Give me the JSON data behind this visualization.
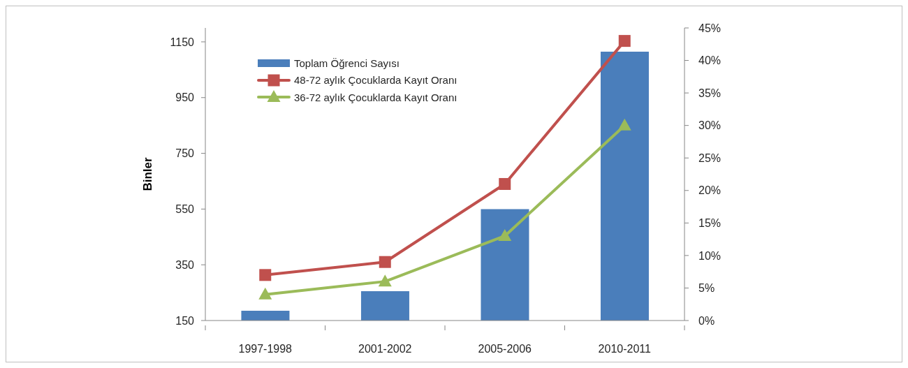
{
  "chart_data": {
    "type": "bar",
    "categories": [
      "1997-1998",
      "2001-2002",
      "2005-2006",
      "2010-2011"
    ],
    "ylabel": "Binler",
    "ylim": [
      150,
      1200
    ],
    "yticks": [
      150,
      350,
      550,
      750,
      950,
      1150
    ],
    "y2lim": [
      0,
      45
    ],
    "y2ticks": [
      {
        "value": 0,
        "label": "0%"
      },
      {
        "value": 5,
        "label": "5%"
      },
      {
        "value": 10,
        "label": "10%"
      },
      {
        "value": 15,
        "label": "15%"
      },
      {
        "value": 20,
        "label": "20%"
      },
      {
        "value": 25,
        "label": "25%"
      },
      {
        "value": 30,
        "label": "30%"
      },
      {
        "value": 35,
        "label": "35%"
      },
      {
        "value": 40,
        "label": "40%"
      },
      {
        "value": 45,
        "label": "45%"
      }
    ],
    "legend": "top left",
    "series": [
      {
        "name": "Toplam Öğrenci Sayısı",
        "color": "#4a7ebb",
        "values": [
          185,
          255,
          550,
          1115
        ]
      },
      {
        "name": "48-72 aylık Çocuklarda Kayıt Oranı",
        "type": "line",
        "axis": "y2",
        "marker": "square",
        "color": "#c0504d",
        "values": [
          7,
          9,
          21,
          43
        ]
      },
      {
        "name": "36-72 aylık Çocuklarda Kayıt Oranı",
        "type": "line",
        "axis": "y2",
        "marker": "triangle",
        "color": "#9bbb59",
        "values": [
          4,
          6,
          13,
          30
        ]
      }
    ]
  }
}
